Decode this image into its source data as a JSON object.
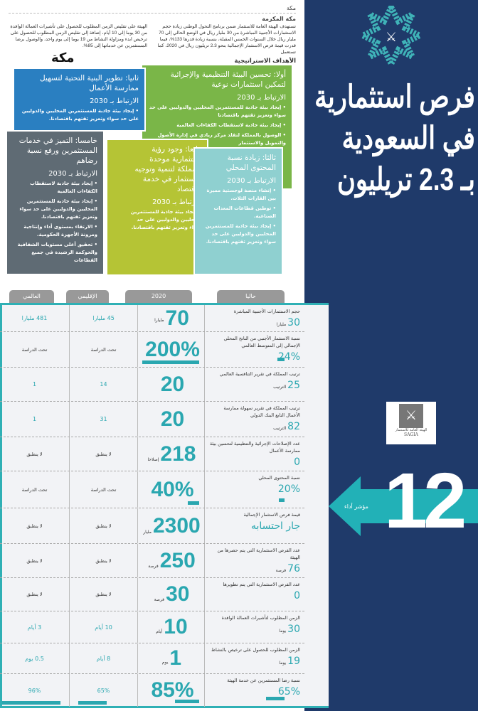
{
  "header": {
    "city": "مكة",
    "city_full": "مكة المكرمة",
    "para_right": "تستهدف الهيئة العامة للاستثمار ضمن برنامج التحول الوطني زيادة حجم الاستثمارات الأجنبية المباشرة من 30 مليار ريال في الوضع الحالي إلى 70 مليار ريال خلال السنوات الخمس المقبلة، بنسبة زيادة قدرها 133%، فيما قدرت قيمة فرص الاستثمار الإجمالية بنحو 2.3 تريليون ريال في 2020، كما تستعمل",
    "para_left": "الهيئة على تقليص الزمن المطلوب للحصول على تأشيرات العمالة الوافدة من 30 يوما إلى 10 أيام، إضافة إلى تقليص الزمن المطلوب للحصول على ترخيص ابدء ومزاولة النشاط من 19 يوما إلى يوم واحد، والوصول برضا المستثمرين عن خدماتها إلى 85%.",
    "section": "الأهداف الاستراتيجية",
    "logo": "مكة"
  },
  "title": {
    "lines": [
      "فرص استثمارية",
      "في السعودية",
      "بـ 2.3 تريليون"
    ]
  },
  "sagia": {
    "name_ar": "الهيئة العامة للاستثمار",
    "name_en": "SAGIA"
  },
  "kpi": {
    "count": "12",
    "label": "مؤشر أداء"
  },
  "goals": [
    {
      "title": "أولا: تحسين البيئة التنظيمية والإجرائية لتمكين استثمارات نوعية",
      "link": "الارتباط بـ 2030",
      "items": [
        "• إيجاد بيئة جاذبة للمستثمرين المحليين والدوليين على حد سواء وتعزيز ثقتهم باقتصادنا",
        "• إيجاد بيئة جاذبة لاستقطاب الكفاءات العالمية",
        "• الوصول بالمملكة لتقلد مركز ريادي في إدارة الأصول والتمويل والاستثمار"
      ]
    },
    {
      "title": "ثانيا: تطوير البنية التحتية لتسهيل ممارسة الأعمال",
      "link": "الارتباط بـ 2030",
      "items": [
        "• إيجاد بيئة جاذبة للمستثمرين المحليين والدوليين على حد سواء وتعزيز ثقتهم باقتصادنا."
      ]
    },
    {
      "title": "ثالثا: زيادة نسبة المحتوى المحلي",
      "link": "الارتباط بـ 2030",
      "items": [
        "• إنشاء منصة لوجستية مميزة بين القارات الثلاث.",
        "• توطين قطاعات المعدات الصناعية.",
        "• إيجاد بيئة جاذبة للمستثمرين المحليين والدوليين على حد سواء وتعزيز ثقتهم باقتصادنا."
      ]
    },
    {
      "title": "رابعا: وجود رؤية استثمارية موحدة للمملكة لتنمية وتوجيه الاستثمار في خدمة الاقتصاد",
      "link": "الارتباط بـ 2030",
      "items": [
        "• إيجاد بيئة جاذبة للمستثمرين المحليين والدوليين على حد سواء وتعزيز ثقتهم باقتصادنا."
      ]
    },
    {
      "title": "خامسا: التميز في خدمات المستثمرين ورفع نسبة رضاهم",
      "link": "الارتباط بـ 2030",
      "items": [
        "• إيجاد بيئة جاذبة لاستقطاب الكفاءات العالمية",
        "• إيجاد بيئة جاذبة للمستثمرين المحليين والدوليين على حد سواء وتعزيز ثقتهم باقتصادنا.",
        "• الارتقاء بمستوى أداء وإنتاجية ومرونة الأجهزة الحكومية.",
        "• تحقيق أعلى مستويات الشفافية والحوكمة الرشيدة في جميع القطاعات"
      ]
    }
  ],
  "table": {
    "headers": [
      "حاليا",
      "2020",
      "الإقليمي",
      "العالمي"
    ],
    "rows": [
      {
        "label": "حجم الاستثمارات الأجنبية المباشرة",
        "current": "30",
        "current_unit": "مليارا",
        "target": "70",
        "target_unit": "مليارا",
        "regional": "45 مليارا",
        "global": "481 مليارا"
      },
      {
        "label": "نسبة الاستثمار الأجنبي من الناتج المحلي الإجمالي إلى المتوسط العالمي",
        "current": "24%",
        "current_unit": "",
        "target": "200%",
        "target_unit": "",
        "regional": "تحت الدراسة",
        "global": "تحت الدراسة"
      },
      {
        "label": "ترتيب المملكة في تقرير التنافسية العالمي",
        "current": "25",
        "current_unit": "الترتيب",
        "target": "20",
        "target_unit": "",
        "regional": "14",
        "global": "1"
      },
      {
        "label": "ترتيب المملكة في تقرير سهولة ممارسة الأعمال التابع البنك الدولي",
        "current": "82",
        "current_unit": "الترتيب",
        "target": "20",
        "target_unit": "",
        "regional": "31",
        "global": "1"
      },
      {
        "label": "عدد الإصلاحات الإجرائية والتنظيمية لتحسين بيئة ممارسة الأعمال",
        "current": "0",
        "current_unit": "",
        "target": "218",
        "target_unit": "إصلاحا",
        "regional": "لا ينطبق",
        "global": "لا ينطبق"
      },
      {
        "label": "نسبة المحتوى المحلي",
        "current": "20%",
        "current_unit": "",
        "target": "40%",
        "target_unit": "",
        "regional": "تحت الدراسة",
        "global": "تحت الدراسة"
      },
      {
        "label": "قيمة فرص الاستثمار الإجمالية",
        "current": "جار احتسابه",
        "current_unit": "",
        "target": "2300",
        "target_unit": "مليار",
        "regional": "لا ينطبق",
        "global": "لا ينطبق"
      },
      {
        "label": "عدد الفرص الاستثمارية التي يتم حصرها من الهيئة",
        "current": "76",
        "current_unit": "فرصة",
        "target": "250",
        "target_unit": "فرصة",
        "regional": "لا ينطبق",
        "global": "لا ينطبق"
      },
      {
        "label": "عدد الفرص الاستثمارية التي يتم تطويرها",
        "current": "0",
        "current_unit": "",
        "target": "30",
        "target_unit": "فرصة",
        "regional": "لا ينطبق",
        "global": "لا ينطبق"
      },
      {
        "label": "الزمن المطلوب لتأشيرات العمالة الوافدة",
        "current": "30",
        "current_unit": "يوما",
        "target": "10",
        "target_unit": "أيام",
        "regional": "10 أيام",
        "global": "3 أيام"
      },
      {
        "label": "الزمن المطلوب للحصول على ترخيص بالنشاط",
        "current": "19",
        "current_unit": "يوما",
        "target": "1",
        "target_unit": "يوم",
        "regional": "8 أيام",
        "global": "0.5 يوم"
      },
      {
        "label": "نسبة رضا المستثمرين عن خدمة الهيئة",
        "current": "65%",
        "current_unit": "",
        "target": "85%",
        "target_unit": "",
        "regional": "65%",
        "global": "96%"
      }
    ]
  },
  "colors": {
    "navy": "#1f3a6a",
    "teal": "#2aa7b0",
    "green": "#7ab648",
    "blue": "#2a7fc1",
    "gray": "#5f6b74",
    "lime": "#b5c435",
    "light_teal": "#8fd0d0"
  }
}
